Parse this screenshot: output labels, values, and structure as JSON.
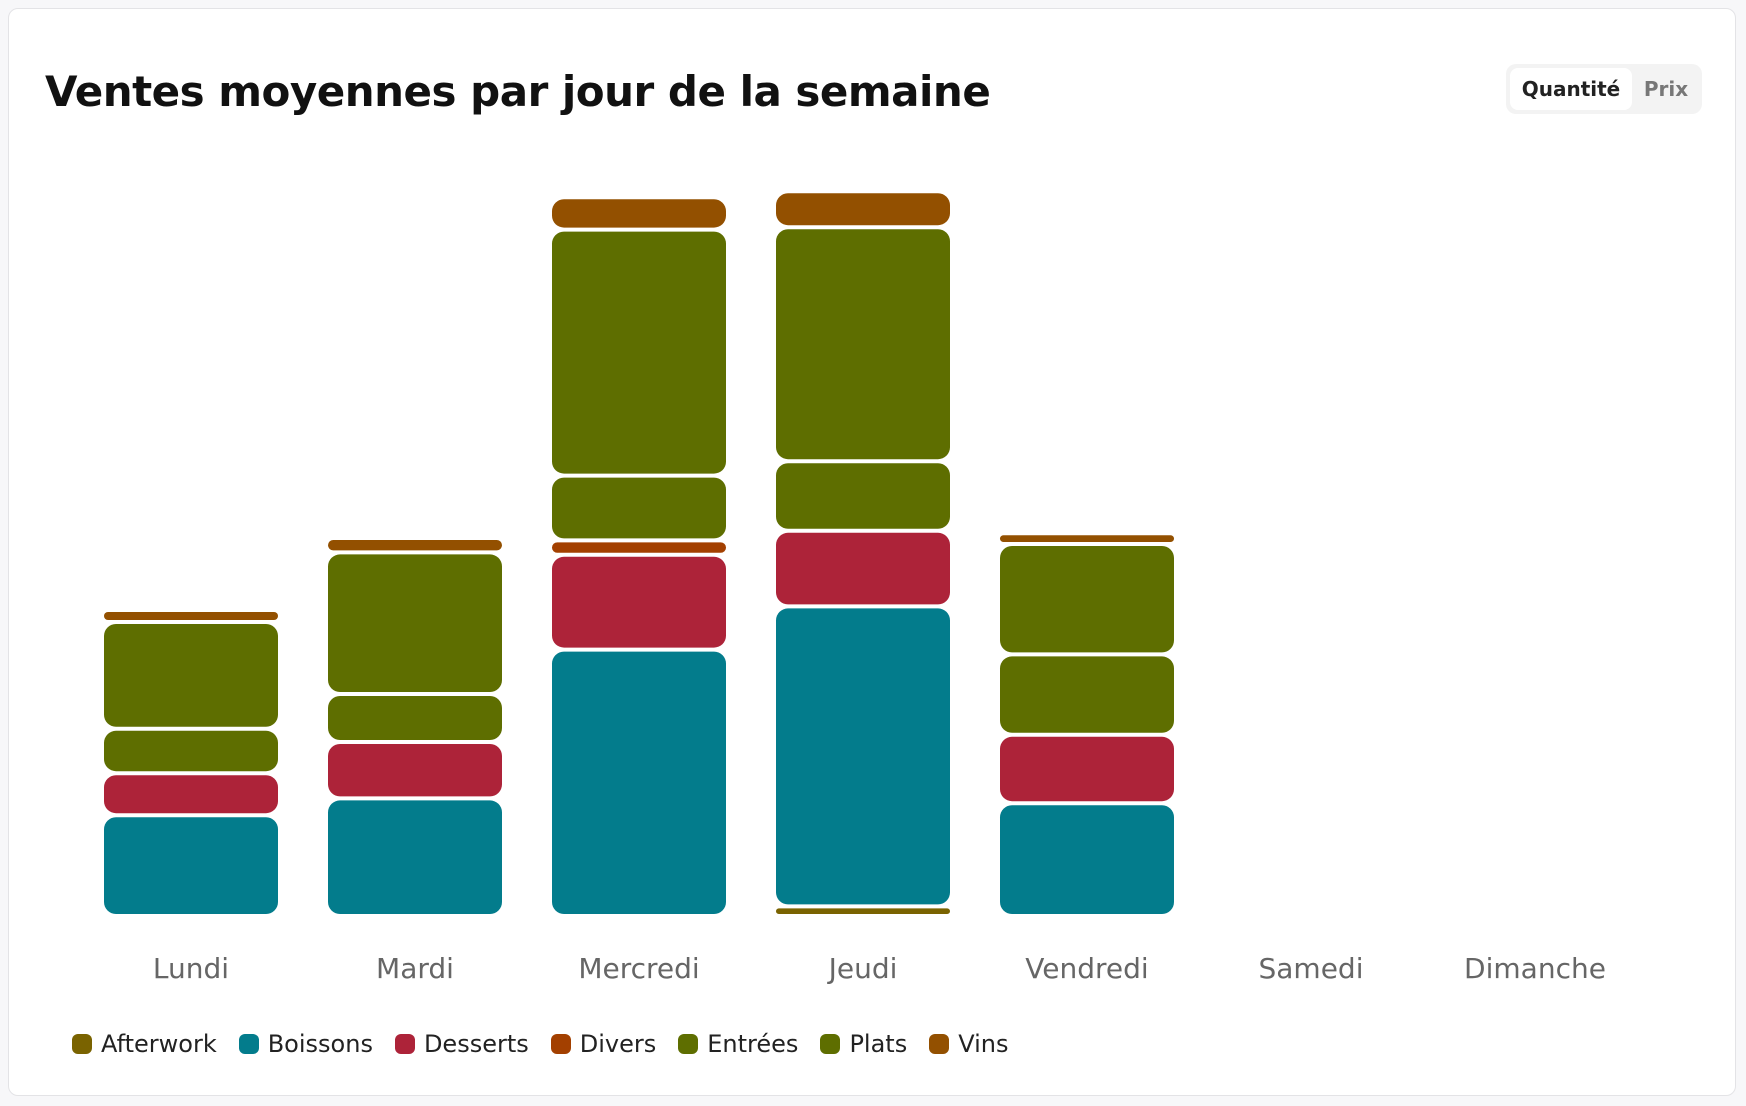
{
  "title": "Ventes moyennes par jour de la semaine",
  "toggle": {
    "options": [
      "Quantité",
      "Prix"
    ],
    "selected": "Quantité"
  },
  "chart_data": {
    "type": "bar",
    "stacked": true,
    "title": "Ventes moyennes par jour de la semaine",
    "categories": [
      "Lundi",
      "Mardi",
      "Mercredi",
      "Jeudi",
      "Vendredi",
      "Samedi",
      "Dimanche"
    ],
    "series": [
      {
        "name": "Afterwork",
        "color": "#7a6300",
        "values": [
          0,
          0,
          0,
          0.8,
          0,
          0,
          0
        ]
      },
      {
        "name": "Boissons",
        "color": "#037c8c",
        "values": [
          8.4,
          9.8,
          22.2,
          25.0,
          9.4,
          0,
          0
        ]
      },
      {
        "name": "Desserts",
        "color": "#ad2339",
        "values": [
          3.5,
          4.7,
          7.9,
          6.3,
          5.7,
          0,
          0
        ]
      },
      {
        "name": "Divers",
        "color": "#a34000",
        "values": [
          0,
          0,
          1.2,
          0,
          0,
          0,
          0
        ]
      },
      {
        "name": "Entrées",
        "color": "#5e6e00",
        "values": [
          3.7,
          4.0,
          5.4,
          5.8,
          6.7,
          0,
          0
        ]
      },
      {
        "name": "Plats",
        "color": "#5e6e00",
        "values": [
          8.9,
          11.8,
          20.5,
          19.5,
          9.2,
          0,
          0
        ]
      },
      {
        "name": "Vins",
        "color": "#935000",
        "values": [
          1.0,
          1.2,
          2.7,
          3.0,
          0.9,
          0,
          0
        ]
      }
    ],
    "xlabel": "",
    "ylabel": "",
    "y_axis_visible": false,
    "grid": false,
    "legend": "bottom-left"
  }
}
